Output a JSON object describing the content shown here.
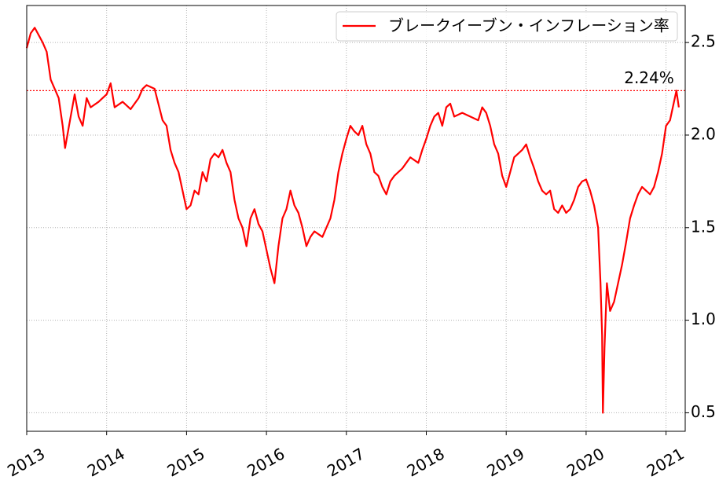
{
  "chart_data": {
    "type": "line",
    "x": [
      2013.0,
      2013.05,
      2013.1,
      2013.15,
      2013.2,
      2013.25,
      2013.3,
      2013.35,
      2013.4,
      2013.45,
      2013.48,
      2013.55,
      2013.6,
      2013.65,
      2013.7,
      2013.75,
      2013.8,
      2013.9,
      2014.0,
      2014.05,
      2014.1,
      2014.2,
      2014.3,
      2014.4,
      2014.45,
      2014.5,
      2014.6,
      2014.7,
      2014.75,
      2014.8,
      2014.85,
      2014.9,
      2014.95,
      2015.0,
      2015.05,
      2015.1,
      2015.15,
      2015.2,
      2015.25,
      2015.3,
      2015.35,
      2015.4,
      2015.45,
      2015.5,
      2015.55,
      2015.6,
      2015.65,
      2015.7,
      2015.75,
      2015.8,
      2015.85,
      2015.9,
      2015.95,
      2016.0,
      2016.05,
      2016.1,
      2016.15,
      2016.2,
      2016.25,
      2016.3,
      2016.35,
      2016.4,
      2016.45,
      2016.5,
      2016.55,
      2016.6,
      2016.7,
      2016.8,
      2016.85,
      2016.9,
      2016.95,
      2017.0,
      2017.05,
      2017.1,
      2017.15,
      2017.2,
      2017.25,
      2017.3,
      2017.35,
      2017.4,
      2017.45,
      2017.5,
      2017.55,
      2017.6,
      2017.7,
      2017.75,
      2017.8,
      2017.9,
      2017.95,
      2018.0,
      2018.05,
      2018.1,
      2018.15,
      2018.2,
      2018.25,
      2018.3,
      2018.35,
      2018.45,
      2018.55,
      2018.65,
      2018.7,
      2018.75,
      2018.8,
      2018.85,
      2018.9,
      2018.95,
      2019.0,
      2019.05,
      2019.1,
      2019.15,
      2019.2,
      2019.25,
      2019.3,
      2019.35,
      2019.4,
      2019.45,
      2019.5,
      2019.55,
      2019.6,
      2019.65,
      2019.7,
      2019.75,
      2019.8,
      2019.85,
      2019.9,
      2019.95,
      2020.0,
      2020.05,
      2020.1,
      2020.15,
      2020.18,
      2020.2,
      2020.21,
      2020.23,
      2020.26,
      2020.3,
      2020.35,
      2020.4,
      2020.45,
      2020.5,
      2020.55,
      2020.6,
      2020.65,
      2020.7,
      2020.75,
      2020.8,
      2020.85,
      2020.9,
      2020.95,
      2021.0,
      2021.05,
      2021.1,
      2021.13,
      2021.16
    ],
    "series": [
      {
        "name": "ブレークイーブン・インフレーション率",
        "color": "#ff0000",
        "values": [
          2.47,
          2.55,
          2.58,
          2.54,
          2.5,
          2.45,
          2.3,
          2.25,
          2.2,
          2.05,
          1.93,
          2.1,
          2.22,
          2.1,
          2.05,
          2.2,
          2.15,
          2.18,
          2.22,
          2.28,
          2.15,
          2.18,
          2.14,
          2.2,
          2.25,
          2.27,
          2.25,
          2.08,
          2.05,
          1.92,
          1.85,
          1.8,
          1.7,
          1.6,
          1.62,
          1.7,
          1.68,
          1.8,
          1.75,
          1.87,
          1.9,
          1.88,
          1.92,
          1.85,
          1.8,
          1.65,
          1.55,
          1.5,
          1.4,
          1.55,
          1.6,
          1.52,
          1.48,
          1.38,
          1.28,
          1.2,
          1.4,
          1.55,
          1.6,
          1.7,
          1.62,
          1.58,
          1.5,
          1.4,
          1.45,
          1.48,
          1.45,
          1.55,
          1.65,
          1.8,
          1.9,
          1.98,
          2.05,
          2.02,
          2.0,
          2.05,
          1.95,
          1.9,
          1.8,
          1.78,
          1.72,
          1.68,
          1.75,
          1.78,
          1.82,
          1.85,
          1.88,
          1.85,
          1.92,
          1.98,
          2.05,
          2.1,
          2.12,
          2.05,
          2.15,
          2.17,
          2.1,
          2.12,
          2.1,
          2.08,
          2.15,
          2.12,
          2.05,
          1.95,
          1.9,
          1.78,
          1.72,
          1.8,
          1.88,
          1.9,
          1.92,
          1.95,
          1.88,
          1.82,
          1.75,
          1.7,
          1.68,
          1.7,
          1.6,
          1.58,
          1.62,
          1.58,
          1.6,
          1.65,
          1.72,
          1.75,
          1.76,
          1.7,
          1.62,
          1.5,
          1.2,
          0.92,
          0.5,
          0.85,
          1.2,
          1.05,
          1.1,
          1.2,
          1.3,
          1.42,
          1.55,
          1.62,
          1.68,
          1.72,
          1.7,
          1.68,
          1.72,
          1.8,
          1.9,
          2.05,
          2.08,
          2.18,
          2.24,
          2.15
        ]
      }
    ],
    "xlim": [
      2013,
      2021.24
    ],
    "xticks": [
      2013,
      2014,
      2015,
      2016,
      2017,
      2018,
      2019,
      2020,
      2021
    ],
    "ylim": [
      0.4,
      2.7
    ],
    "yticks": [
      0.5,
      {
        "value": 1,
        "label": "1.0"
      },
      1.5,
      {
        "value": 2,
        "label": "2.0"
      },
      2.5
    ],
    "reference_line": {
      "value": 2.24,
      "label": "2.24%",
      "color": "#ff0000"
    },
    "grid": true,
    "legend": "upper right"
  }
}
